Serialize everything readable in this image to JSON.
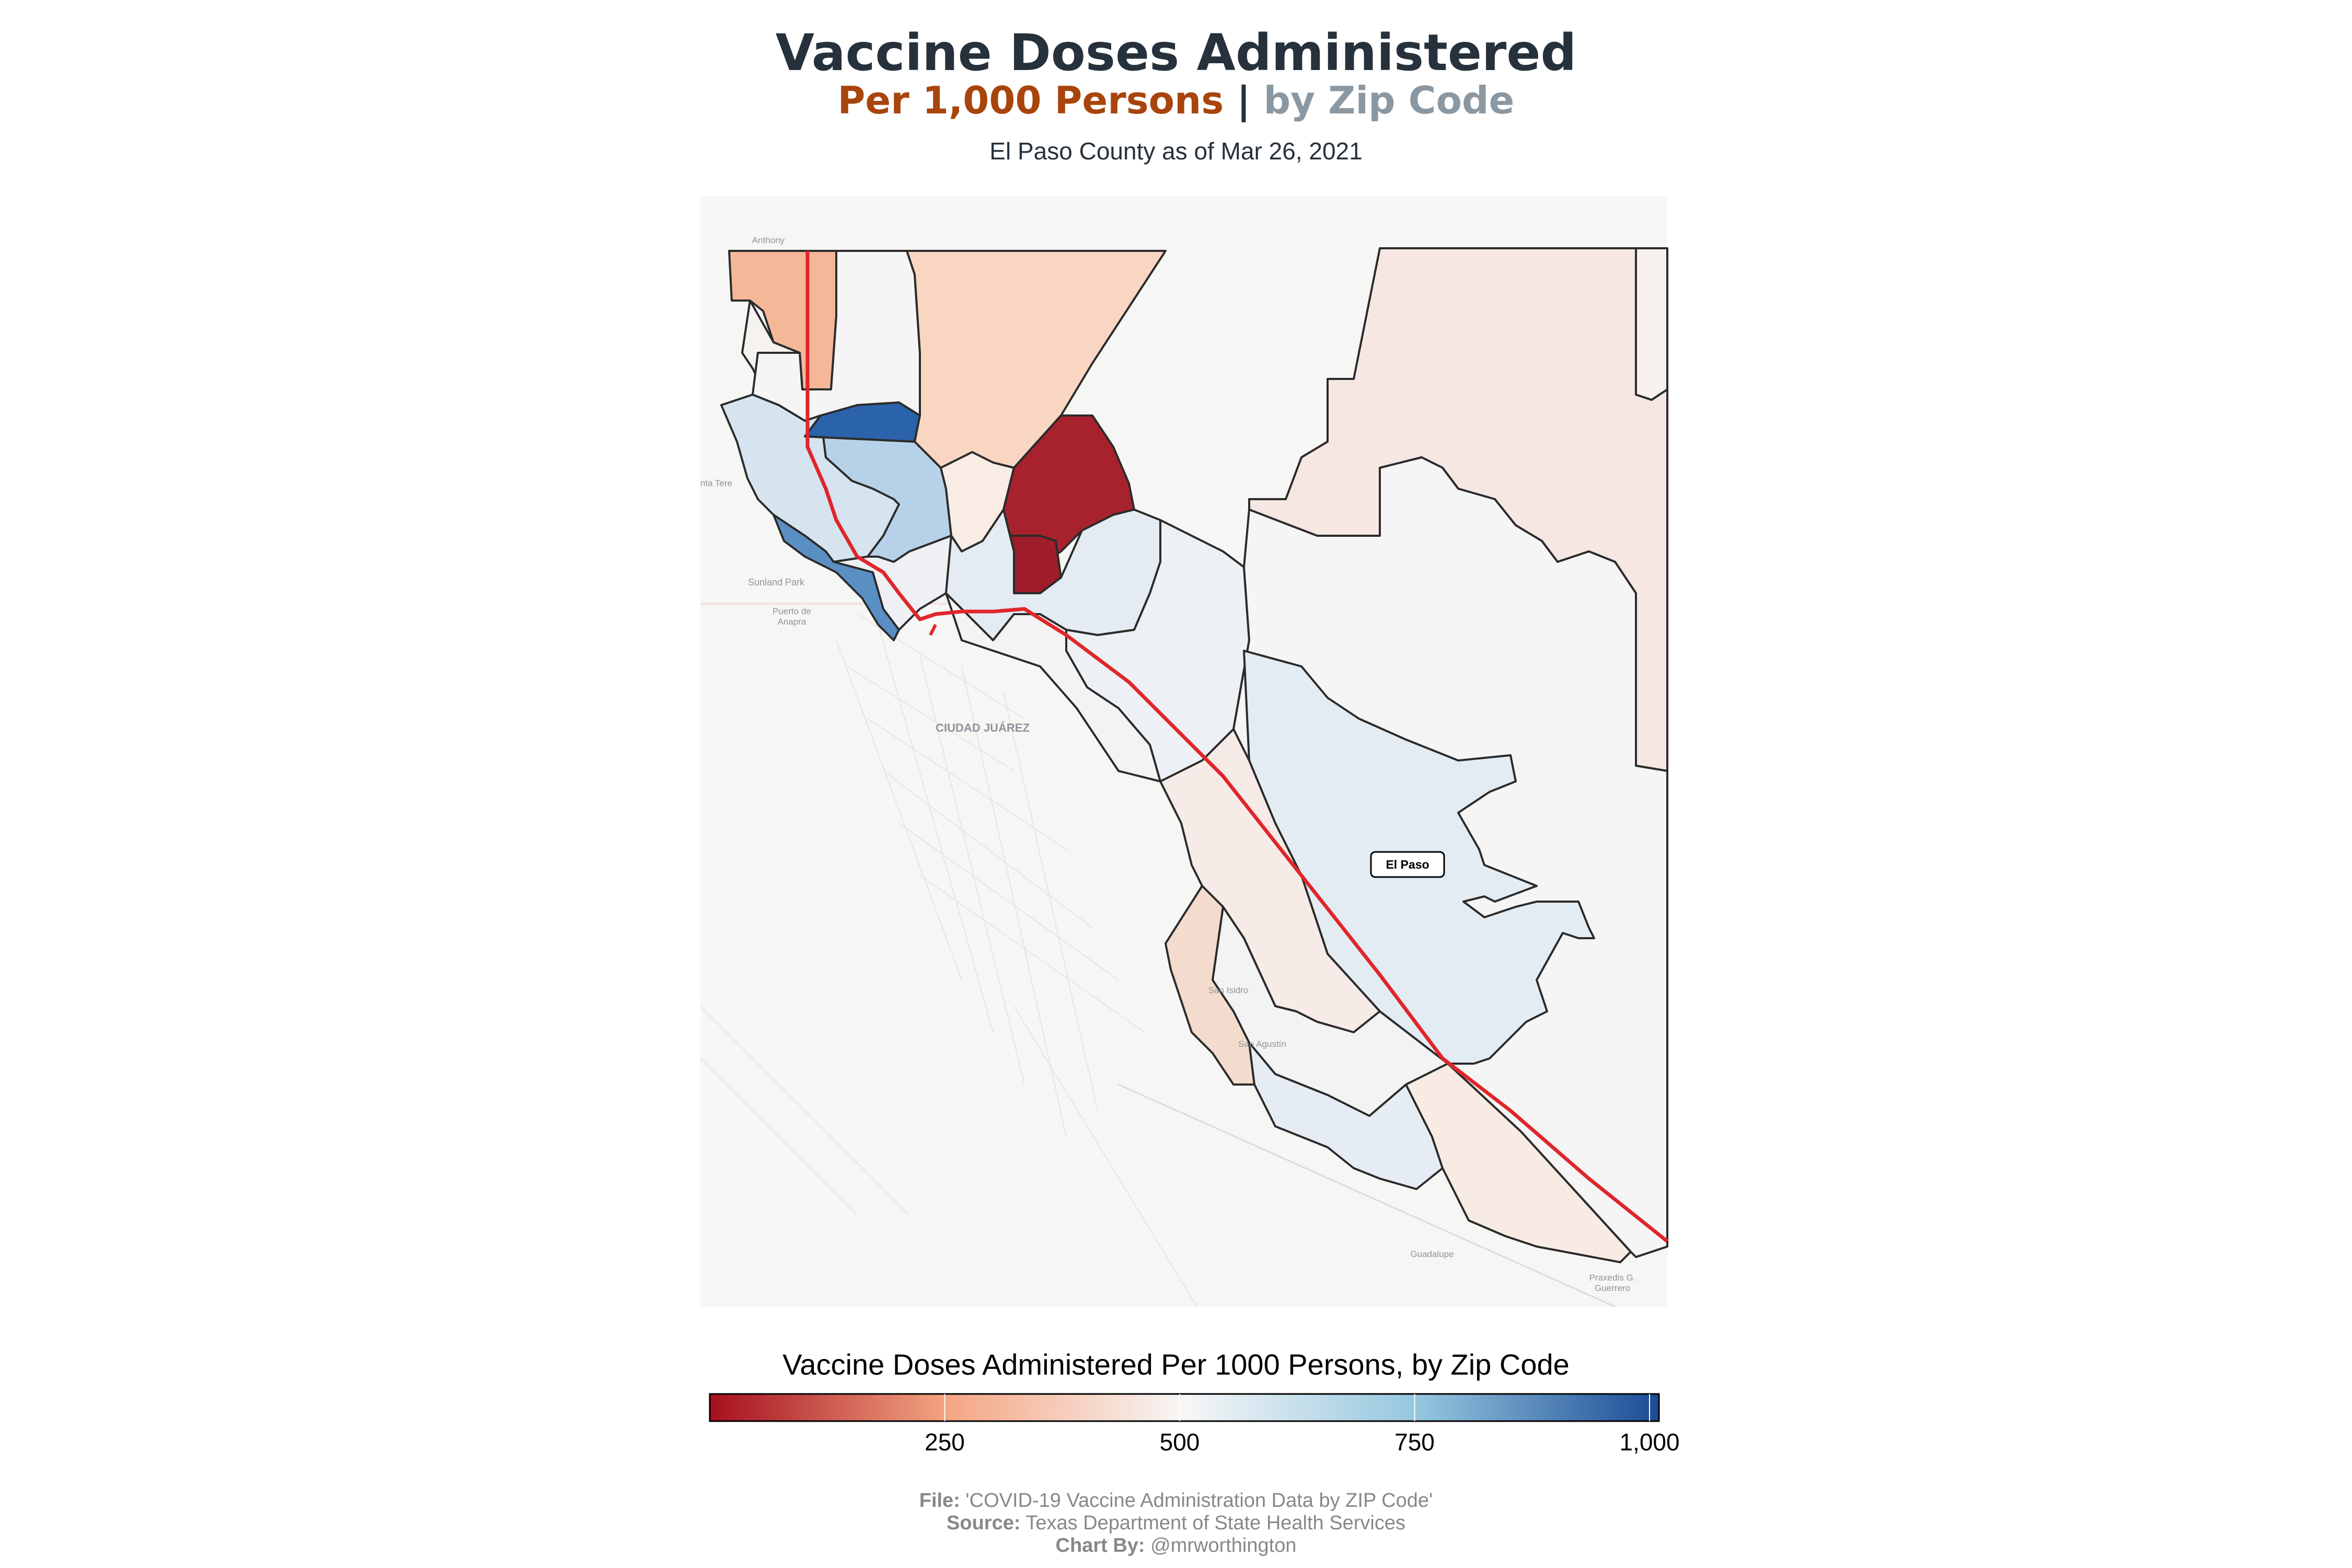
{
  "title": "Vaccine Doses Administered",
  "subtitle": {
    "part1": "Per 1,000 Persons",
    "separator": "|",
    "part2": "by Zip Code"
  },
  "caption": "El Paso County as of Mar 26, 2021",
  "map": {
    "places": [
      "Anthony",
      "nta Tere",
      "Sunland Park",
      "Puerto de",
      "Anapra",
      "CIUDAD JUÁREZ",
      "San Isidro",
      "San Agustín",
      "Guadalupe",
      "Praxedis G.",
      "Guerrero"
    ],
    "city_label": "El Paso"
  },
  "legend": {
    "title": "Vaccine Doses Administered Per 1000 Persons, by Zip Code",
    "ticks": [
      "250",
      "500",
      "750",
      "1,000"
    ],
    "colors": [
      "#a50f1e",
      "#f4a582",
      "#f7f7f7",
      "#92c5de",
      "#1c4b96"
    ],
    "range": [
      0,
      1010
    ]
  },
  "footer": {
    "file_label": "File:",
    "file_value": "'COVID-19 Vaccine Administration Data by ZIP Code'",
    "source_label": "Source:",
    "source_value": "Texas Department of State Health Services",
    "chart_label": "Chart By:",
    "chart_value": "@mrworthington"
  },
  "colors": {
    "title": "#26313b",
    "subtitle_part1": "#a8440c",
    "subtitle_part2": "#8b98a2",
    "highway": "#e0262b"
  }
}
